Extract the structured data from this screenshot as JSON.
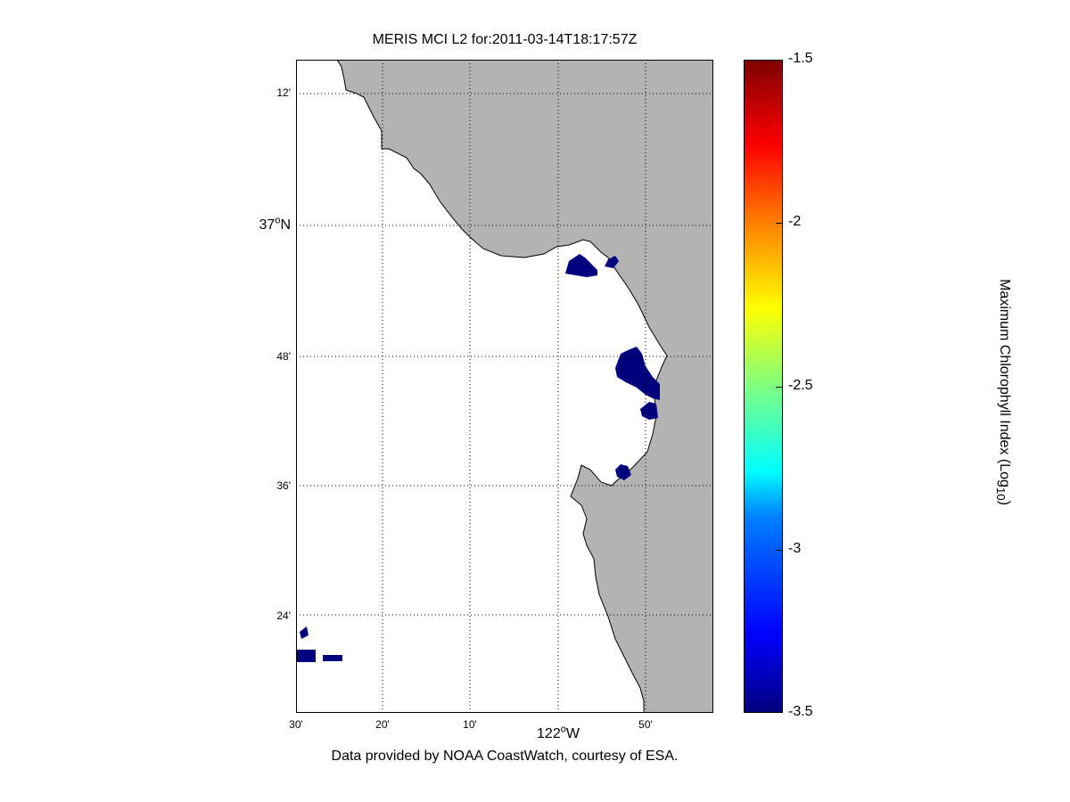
{
  "map": {
    "title": "MERIS MCI L2 for:2011-03-14T18:17:57Z",
    "credit": "Data provided by NOAA CoastWatch, courtesy of ESA.",
    "land_color": "#b3b3b3",
    "ocean_color": "#ffffff",
    "bloom_color": "#00007f",
    "lat_labels": {
      "l12": "12'",
      "l37": "37",
      "l37_sup": "o",
      "l37_suffix": "N",
      "l48": "48'",
      "l36": "36'",
      "l24": "24'"
    },
    "lon_labels": {
      "l30": "30'",
      "l20": "20'",
      "l10": "10'",
      "l122": "122",
      "l122_sup": "o",
      "l122_suffix": "W",
      "l50": "50'"
    }
  },
  "colorbar": {
    "label_main": "Maximum Chlorophyll Index (Log",
    "label_sub": "10",
    "label_end": ")",
    "range": [
      -3.5,
      -1.5
    ],
    "ticks": [
      "-1.5",
      "-2",
      "-2.5",
      "-3",
      "-3.5"
    ],
    "colormap": "jet"
  }
}
